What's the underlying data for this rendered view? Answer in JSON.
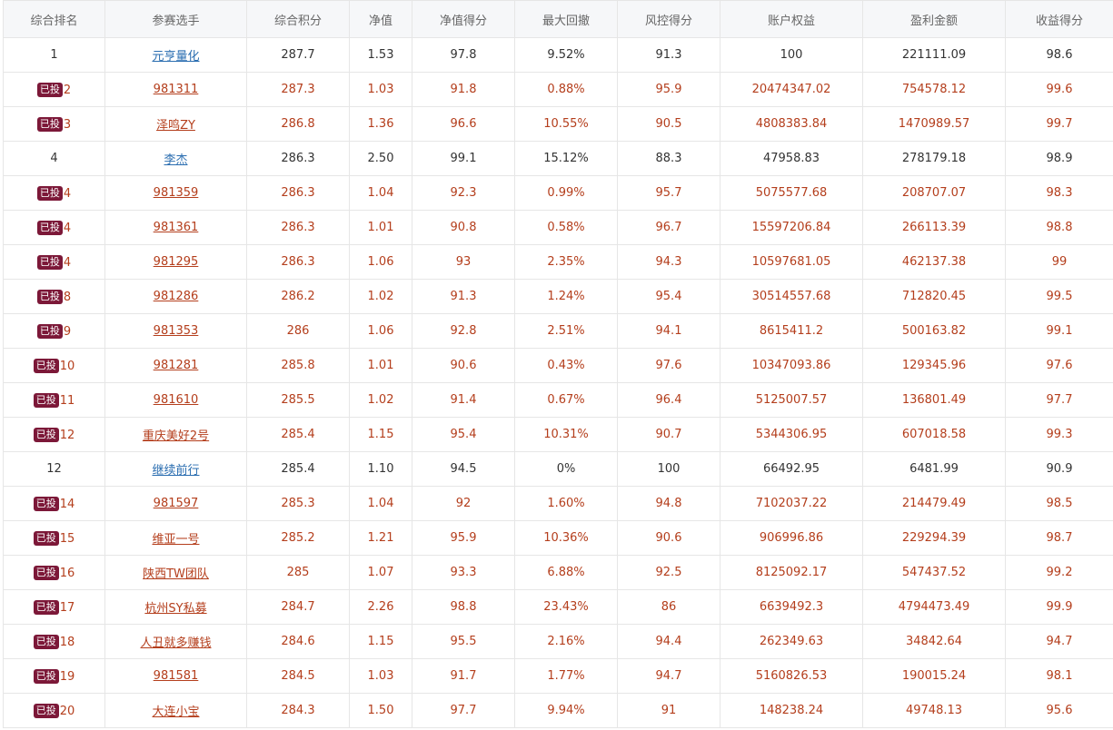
{
  "colors": {
    "header_bg": "#f6f7f9",
    "invested_text": "#b43e1c",
    "link_blue": "#2a6db0",
    "badge_bg": "#7c1838"
  },
  "headers": [
    "综合排名",
    "参赛选手",
    "综合积分",
    "净值",
    "净值得分",
    "最大回撤",
    "风控得分",
    "账户权益",
    "盈利金额",
    "收益得分"
  ],
  "badge_label": "已投",
  "rows": [
    {
      "invested": false,
      "rank": "1",
      "player": "元亨量化",
      "score": "287.7",
      "nav": "1.53",
      "nav_score": "97.8",
      "drawdown": "9.52%",
      "risk_score": "91.3",
      "equity": "100",
      "profit": "221111.09",
      "return_score": "98.6"
    },
    {
      "invested": true,
      "rank": "2",
      "player": "981311",
      "score": "287.3",
      "nav": "1.03",
      "nav_score": "91.8",
      "drawdown": "0.88%",
      "risk_score": "95.9",
      "equity": "20474347.02",
      "profit": "754578.12",
      "return_score": "99.6"
    },
    {
      "invested": true,
      "rank": "3",
      "player": "泽鸣ZY",
      "score": "286.8",
      "nav": "1.36",
      "nav_score": "96.6",
      "drawdown": "10.55%",
      "risk_score": "90.5",
      "equity": "4808383.84",
      "profit": "1470989.57",
      "return_score": "99.7"
    },
    {
      "invested": false,
      "rank": "4",
      "player": "李杰",
      "score": "286.3",
      "nav": "2.50",
      "nav_score": "99.1",
      "drawdown": "15.12%",
      "risk_score": "88.3",
      "equity": "47958.83",
      "profit": "278179.18",
      "return_score": "98.9"
    },
    {
      "invested": true,
      "rank": "4",
      "player": "981359",
      "score": "286.3",
      "nav": "1.04",
      "nav_score": "92.3",
      "drawdown": "0.99%",
      "risk_score": "95.7",
      "equity": "5075577.68",
      "profit": "208707.07",
      "return_score": "98.3"
    },
    {
      "invested": true,
      "rank": "4",
      "player": "981361",
      "score": "286.3",
      "nav": "1.01",
      "nav_score": "90.8",
      "drawdown": "0.58%",
      "risk_score": "96.7",
      "equity": "15597206.84",
      "profit": "266113.39",
      "return_score": "98.8"
    },
    {
      "invested": true,
      "rank": "4",
      "player": "981295",
      "score": "286.3",
      "nav": "1.06",
      "nav_score": "93",
      "drawdown": "2.35%",
      "risk_score": "94.3",
      "equity": "10597681.05",
      "profit": "462137.38",
      "return_score": "99"
    },
    {
      "invested": true,
      "rank": "8",
      "player": "981286",
      "score": "286.2",
      "nav": "1.02",
      "nav_score": "91.3",
      "drawdown": "1.24%",
      "risk_score": "95.4",
      "equity": "30514557.68",
      "profit": "712820.45",
      "return_score": "99.5"
    },
    {
      "invested": true,
      "rank": "9",
      "player": "981353",
      "score": "286",
      "nav": "1.06",
      "nav_score": "92.8",
      "drawdown": "2.51%",
      "risk_score": "94.1",
      "equity": "8615411.2",
      "profit": "500163.82",
      "return_score": "99.1"
    },
    {
      "invested": true,
      "rank": "10",
      "player": "981281",
      "score": "285.8",
      "nav": "1.01",
      "nav_score": "90.6",
      "drawdown": "0.43%",
      "risk_score": "97.6",
      "equity": "10347093.86",
      "profit": "129345.96",
      "return_score": "97.6"
    },
    {
      "invested": true,
      "rank": "11",
      "player": "981610",
      "score": "285.5",
      "nav": "1.02",
      "nav_score": "91.4",
      "drawdown": "0.67%",
      "risk_score": "96.4",
      "equity": "5125007.57",
      "profit": "136801.49",
      "return_score": "97.7"
    },
    {
      "invested": true,
      "rank": "12",
      "player": "重庆美好2号",
      "score": "285.4",
      "nav": "1.15",
      "nav_score": "95.4",
      "drawdown": "10.31%",
      "risk_score": "90.7",
      "equity": "5344306.95",
      "profit": "607018.58",
      "return_score": "99.3"
    },
    {
      "invested": false,
      "rank": "12",
      "player": "继续前行",
      "score": "285.4",
      "nav": "1.10",
      "nav_score": "94.5",
      "drawdown": "0%",
      "risk_score": "100",
      "equity": "66492.95",
      "profit": "6481.99",
      "return_score": "90.9"
    },
    {
      "invested": true,
      "rank": "14",
      "player": "981597",
      "score": "285.3",
      "nav": "1.04",
      "nav_score": "92",
      "drawdown": "1.60%",
      "risk_score": "94.8",
      "equity": "7102037.22",
      "profit": "214479.49",
      "return_score": "98.5"
    },
    {
      "invested": true,
      "rank": "15",
      "player": "维亚一号",
      "score": "285.2",
      "nav": "1.21",
      "nav_score": "95.9",
      "drawdown": "10.36%",
      "risk_score": "90.6",
      "equity": "906996.86",
      "profit": "229294.39",
      "return_score": "98.7"
    },
    {
      "invested": true,
      "rank": "16",
      "player": "陕西TW团队",
      "score": "285",
      "nav": "1.07",
      "nav_score": "93.3",
      "drawdown": "6.88%",
      "risk_score": "92.5",
      "equity": "8125092.17",
      "profit": "547437.52",
      "return_score": "99.2"
    },
    {
      "invested": true,
      "rank": "17",
      "player": "杭州SY私募",
      "score": "284.7",
      "nav": "2.26",
      "nav_score": "98.8",
      "drawdown": "23.43%",
      "risk_score": "86",
      "equity": "6639492.3",
      "profit": "4794473.49",
      "return_score": "99.9"
    },
    {
      "invested": true,
      "rank": "18",
      "player": "人丑就多赚钱",
      "score": "284.6",
      "nav": "1.15",
      "nav_score": "95.5",
      "drawdown": "2.16%",
      "risk_score": "94.4",
      "equity": "262349.63",
      "profit": "34842.64",
      "return_score": "94.7"
    },
    {
      "invested": true,
      "rank": "19",
      "player": "981581",
      "score": "284.5",
      "nav": "1.03",
      "nav_score": "91.7",
      "drawdown": "1.77%",
      "risk_score": "94.7",
      "equity": "5160826.53",
      "profit": "190015.24",
      "return_score": "98.1"
    },
    {
      "invested": true,
      "rank": "20",
      "player": "大连小宝",
      "score": "284.3",
      "nav": "1.50",
      "nav_score": "97.7",
      "drawdown": "9.94%",
      "risk_score": "91",
      "equity": "148238.24",
      "profit": "49748.13",
      "return_score": "95.6"
    }
  ]
}
